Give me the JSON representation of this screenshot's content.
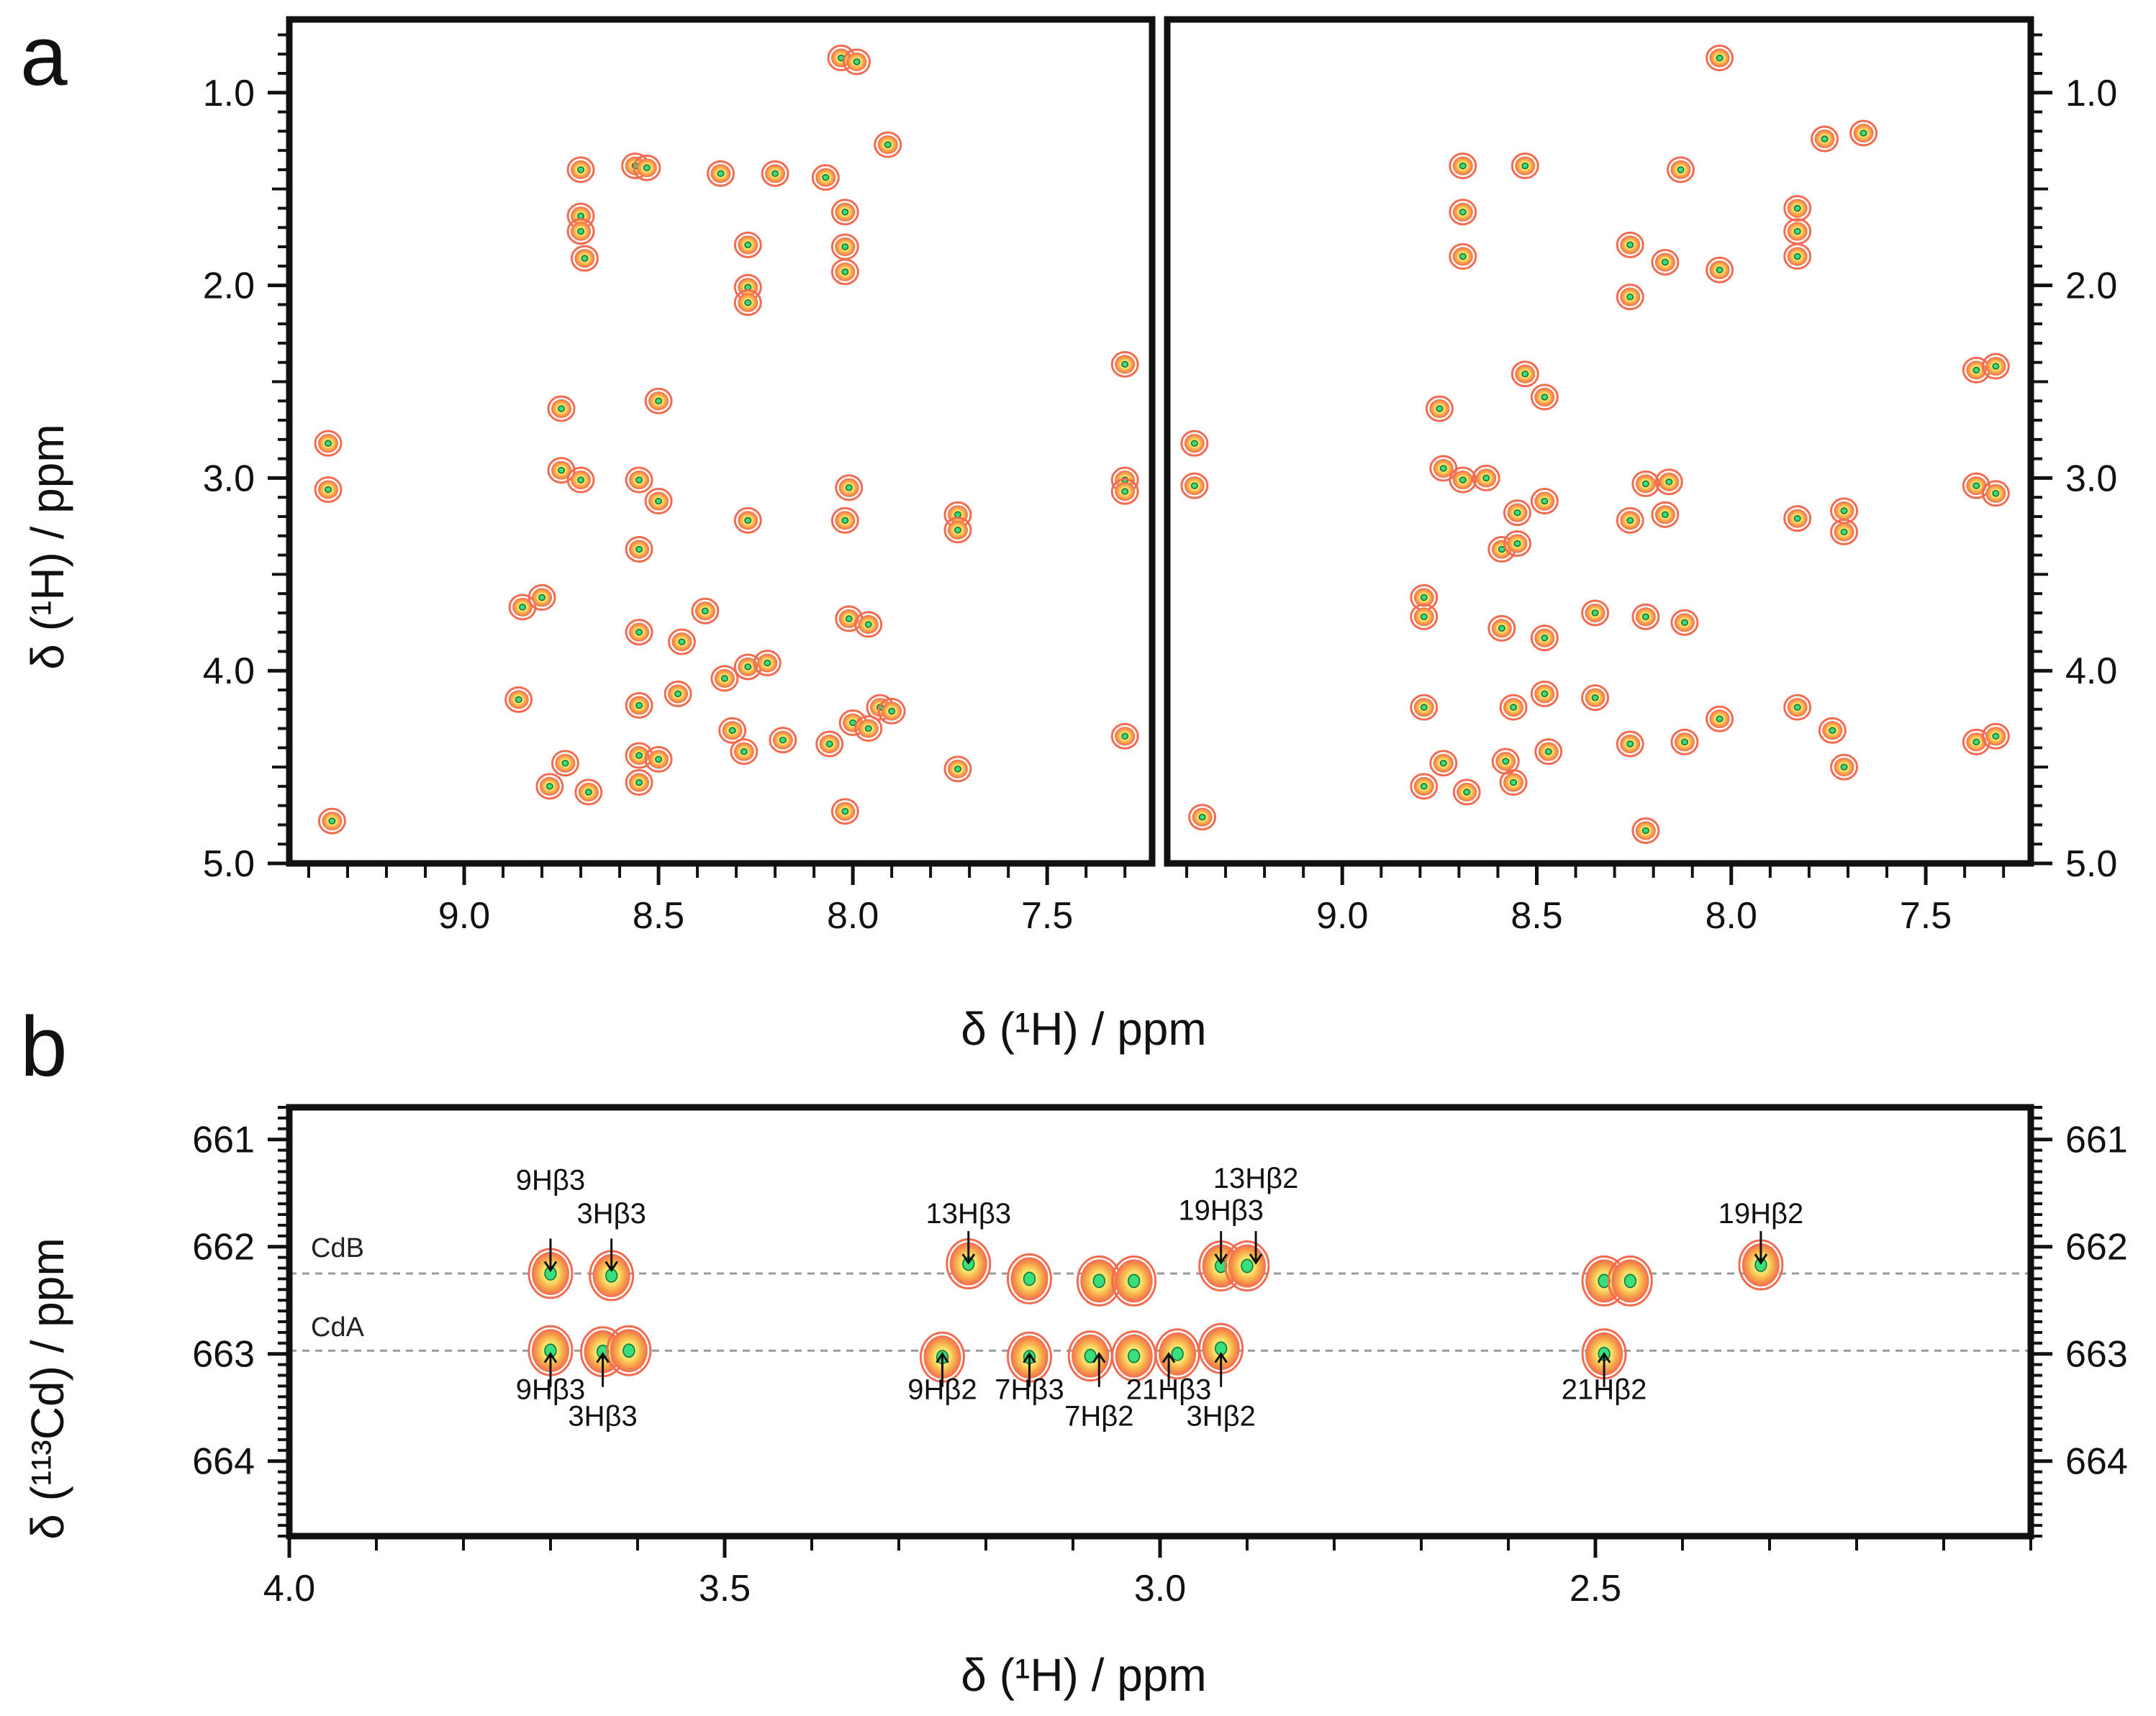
{
  "colors": {
    "contour_outer": "#f36b50",
    "contour_mid": "#f7a64a",
    "contour_inner": "#f9e36a",
    "contour_core": "#37e07d",
    "frame": "#111111"
  },
  "chart_data": [
    {
      "id": "a-left",
      "panel": "a",
      "type": "scatter",
      "xlabel": "δ (¹H) / ppm",
      "ylabel": "δ (¹H) / ppm",
      "xlim": [
        9.45,
        7.23
      ],
      "ylim": [
        0.62,
        5.0
      ],
      "xticks": [
        "9.0",
        "8.5",
        "8.0",
        "7.5"
      ],
      "yticks": [
        "1.0",
        "2.0",
        "3.0",
        "4.0",
        "5.0"
      ],
      "peaks": [
        [
          9.35,
          2.82
        ],
        [
          9.35,
          3.06
        ],
        [
          9.34,
          4.78
        ],
        [
          8.85,
          3.67
        ],
        [
          8.8,
          3.62
        ],
        [
          8.86,
          4.15
        ],
        [
          8.75,
          2.64
        ],
        [
          8.75,
          2.96
        ],
        [
          8.74,
          4.48
        ],
        [
          8.78,
          4.6
        ],
        [
          8.7,
          1.4
        ],
        [
          8.7,
          1.64
        ],
        [
          8.7,
          1.72
        ],
        [
          8.69,
          1.86
        ],
        [
          8.7,
          3.01
        ],
        [
          8.68,
          4.63
        ],
        [
          8.56,
          1.38
        ],
        [
          8.53,
          1.39
        ],
        [
          8.5,
          2.6
        ],
        [
          8.55,
          3.01
        ],
        [
          8.5,
          3.12
        ],
        [
          8.55,
          3.37
        ],
        [
          8.55,
          3.8
        ],
        [
          8.55,
          4.18
        ],
        [
          8.55,
          4.44
        ],
        [
          8.5,
          4.46
        ],
        [
          8.55,
          4.58
        ],
        [
          8.44,
          3.85
        ],
        [
          8.45,
          4.12
        ],
        [
          8.38,
          3.69
        ],
        [
          8.33,
          4.04
        ],
        [
          8.27,
          3.98
        ],
        [
          8.22,
          3.96
        ],
        [
          8.31,
          4.31
        ],
        [
          8.28,
          4.42
        ],
        [
          8.18,
          4.36
        ],
        [
          8.06,
          4.38
        ],
        [
          8.0,
          4.27
        ],
        [
          7.96,
          4.3
        ],
        [
          8.27,
          1.79
        ],
        [
          8.27,
          2.01
        ],
        [
          8.27,
          2.09
        ],
        [
          8.27,
          3.22
        ],
        [
          8.34,
          1.42
        ],
        [
          8.2,
          1.42
        ],
        [
          8.07,
          1.44
        ],
        [
          8.03,
          0.82
        ],
        [
          7.99,
          0.84
        ],
        [
          7.91,
          1.27
        ],
        [
          8.02,
          1.62
        ],
        [
          8.02,
          1.8
        ],
        [
          8.02,
          1.93
        ],
        [
          8.01,
          3.05
        ],
        [
          8.02,
          3.22
        ],
        [
          8.01,
          3.73
        ],
        [
          7.96,
          3.76
        ],
        [
          7.93,
          4.19
        ],
        [
          7.9,
          4.21
        ],
        [
          8.02,
          4.73
        ],
        [
          7.73,
          3.19
        ],
        [
          7.73,
          3.27
        ],
        [
          7.73,
          4.51
        ],
        [
          7.3,
          2.41
        ],
        [
          7.3,
          3.01
        ],
        [
          7.3,
          3.07
        ],
        [
          7.3,
          4.34
        ]
      ]
    },
    {
      "id": "a-right",
      "panel": "a",
      "type": "scatter",
      "xlabel": "δ (¹H) / ppm",
      "ylabel": "δ (¹H) / ppm",
      "xlim": [
        9.45,
        7.23
      ],
      "ylim": [
        0.62,
        5.0
      ],
      "xticks": [
        "9.0",
        "8.5",
        "8.0",
        "7.5"
      ],
      "yticks": [
        "1.0",
        "2.0",
        "3.0",
        "4.0",
        "5.0"
      ],
      "peaks": [
        [
          9.38,
          2.82
        ],
        [
          9.38,
          3.04
        ],
        [
          9.36,
          4.76
        ],
        [
          8.79,
          3.62
        ],
        [
          8.79,
          3.72
        ],
        [
          8.79,
          4.19
        ],
        [
          8.79,
          4.6
        ],
        [
          8.75,
          2.64
        ],
        [
          8.74,
          2.95
        ],
        [
          8.74,
          4.48
        ],
        [
          8.69,
          1.38
        ],
        [
          8.69,
          1.62
        ],
        [
          8.69,
          1.85
        ],
        [
          8.69,
          3.01
        ],
        [
          8.68,
          4.63
        ],
        [
          8.63,
          3.0
        ],
        [
          8.59,
          3.37
        ],
        [
          8.55,
          3.34
        ],
        [
          8.59,
          3.78
        ],
        [
          8.56,
          4.19
        ],
        [
          8.58,
          4.47
        ],
        [
          8.56,
          4.58
        ],
        [
          8.53,
          1.38
        ],
        [
          8.53,
          2.46
        ],
        [
          8.48,
          2.58
        ],
        [
          8.48,
          3.12
        ],
        [
          8.48,
          3.83
        ],
        [
          8.48,
          4.12
        ],
        [
          8.47,
          4.42
        ],
        [
          8.55,
          3.18
        ],
        [
          8.35,
          3.7
        ],
        [
          8.35,
          4.14
        ],
        [
          8.26,
          1.79
        ],
        [
          8.26,
          2.06
        ],
        [
          8.26,
          3.22
        ],
        [
          8.26,
          4.38
        ],
        [
          8.22,
          3.03
        ],
        [
          8.22,
          3.72
        ],
        [
          8.22,
          4.83
        ],
        [
          8.17,
          1.88
        ],
        [
          8.17,
          3.19
        ],
        [
          8.16,
          3.02
        ],
        [
          8.13,
          1.4
        ],
        [
          8.12,
          4.37
        ],
        [
          8.12,
          3.75
        ],
        [
          8.03,
          0.82
        ],
        [
          8.03,
          1.92
        ],
        [
          8.03,
          4.25
        ],
        [
          7.83,
          1.6
        ],
        [
          7.83,
          1.72
        ],
        [
          7.83,
          1.85
        ],
        [
          7.83,
          3.21
        ],
        [
          7.83,
          4.19
        ],
        [
          7.76,
          1.24
        ],
        [
          7.74,
          4.31
        ],
        [
          7.71,
          3.17
        ],
        [
          7.71,
          3.28
        ],
        [
          7.71,
          4.5
        ],
        [
          7.66,
          1.21
        ],
        [
          7.37,
          2.44
        ],
        [
          7.32,
          2.42
        ],
        [
          7.37,
          3.04
        ],
        [
          7.32,
          3.08
        ],
        [
          7.37,
          4.37
        ],
        [
          7.32,
          4.34
        ]
      ]
    },
    {
      "id": "b",
      "panel": "b",
      "type": "scatter",
      "xlabel": "δ (¹H) / ppm",
      "ylabel": "δ (¹¹³Cd) / ppm",
      "xlim": [
        4.0,
        2.0
      ],
      "ylim": [
        660.7,
        664.7
      ],
      "xticks": [
        "4.0",
        "3.5",
        "3.0",
        "2.5"
      ],
      "yticks": [
        "661",
        "662",
        "663",
        "664"
      ],
      "rows": [
        {
          "name": "CdB",
          "y": 662.25
        },
        {
          "name": "CdA",
          "y": 662.97
        }
      ],
      "peaks": [
        [
          3.7,
          662.25
        ],
        [
          3.63,
          662.27
        ],
        [
          3.7,
          662.97
        ],
        [
          3.64,
          662.98
        ],
        [
          3.61,
          662.97
        ],
        [
          3.25,
          663.03
        ],
        [
          3.22,
          662.16
        ],
        [
          3.15,
          663.03
        ],
        [
          3.15,
          662.3
        ],
        [
          3.08,
          663.02
        ],
        [
          3.07,
          662.32
        ],
        [
          3.03,
          663.02
        ],
        [
          3.03,
          662.32
        ],
        [
          2.98,
          663.0
        ],
        [
          2.93,
          662.18
        ],
        [
          2.9,
          662.18
        ],
        [
          2.93,
          662.95
        ],
        [
          2.49,
          663.0
        ],
        [
          2.49,
          662.32
        ],
        [
          2.46,
          662.32
        ],
        [
          2.31,
          662.17
        ]
      ],
      "annotations": [
        {
          "text": "9Hβ3",
          "x": 3.7,
          "y": 662.22,
          "dir": "down",
          "label_y": 661.47
        },
        {
          "text": "3Hβ3",
          "x": 3.63,
          "y": 662.22,
          "dir": "down",
          "label_y": 661.78
        },
        {
          "text": "13Hβ3",
          "x": 3.22,
          "y": 662.15,
          "dir": "down",
          "label_y": 661.78
        },
        {
          "text": "19Hβ3",
          "x": 2.93,
          "y": 662.15,
          "dir": "down",
          "label_y": 661.75
        },
        {
          "text": "13Hβ2",
          "x": 2.89,
          "y": 662.15,
          "dir": "down",
          "label_y": 661.45
        },
        {
          "text": "19Hβ2",
          "x": 2.31,
          "y": 662.15,
          "dir": "down",
          "label_y": 661.78
        },
        {
          "text": "9Hβ3",
          "x": 3.7,
          "y": 663.0,
          "dir": "up",
          "label_y": 663.42
        },
        {
          "text": "3Hβ3",
          "x": 3.64,
          "y": 663.0,
          "dir": "up",
          "label_y": 663.67
        },
        {
          "text": "9Hβ2",
          "x": 3.25,
          "y": 663.0,
          "dir": "up",
          "label_y": 663.42
        },
        {
          "text": "7Hβ3",
          "x": 3.15,
          "y": 663.0,
          "dir": "up",
          "label_y": 663.42
        },
        {
          "text": "7Hβ2",
          "x": 3.07,
          "y": 663.0,
          "dir": "up",
          "label_y": 663.67
        },
        {
          "text": "21Hβ3",
          "x": 2.99,
          "y": 663.0,
          "dir": "up",
          "label_y": 663.42
        },
        {
          "text": "3Hβ2",
          "x": 2.93,
          "y": 663.0,
          "dir": "up",
          "label_y": 663.67
        },
        {
          "text": "21Hβ2",
          "x": 2.49,
          "y": 663.0,
          "dir": "up",
          "label_y": 663.42
        }
      ]
    }
  ],
  "labels": {
    "panel_a": "a",
    "panel_b": "b",
    "a_ylabel": "δ (¹H) / ppm",
    "a_xlabel": "δ (¹H) / ppm",
    "b_ylabel": "δ (¹¹³Cd) / ppm",
    "b_xlabel": "δ (¹H) / ppm",
    "cdb": "CdB",
    "cda": "CdA"
  }
}
